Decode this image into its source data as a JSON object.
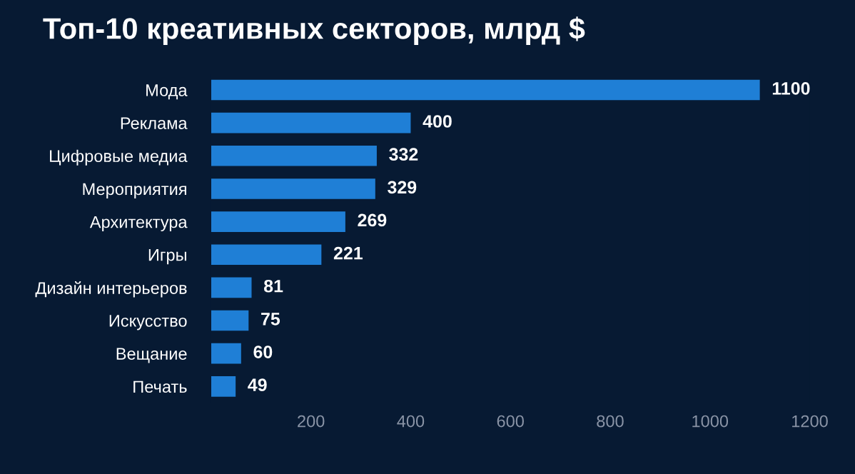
{
  "chart_data": {
    "type": "bar",
    "orientation": "horizontal",
    "title": "Топ-10 креативных секторов, млрд $",
    "categories": [
      "Мода",
      "Реклама",
      "Цифровые медиа",
      "Мероприятия",
      "Архитектура",
      "Игры",
      "Дизайн интерьеров",
      "Искусство",
      "Вещание",
      "Печать"
    ],
    "values": [
      1100,
      400,
      332,
      329,
      269,
      221,
      81,
      75,
      60,
      49
    ],
    "color": "#1f7fd6",
    "xlim": [
      0,
      1200
    ],
    "xticks": [
      200,
      400,
      600,
      800,
      1000,
      1200
    ],
    "data_labels": true,
    "grid": false,
    "legend": false
  }
}
